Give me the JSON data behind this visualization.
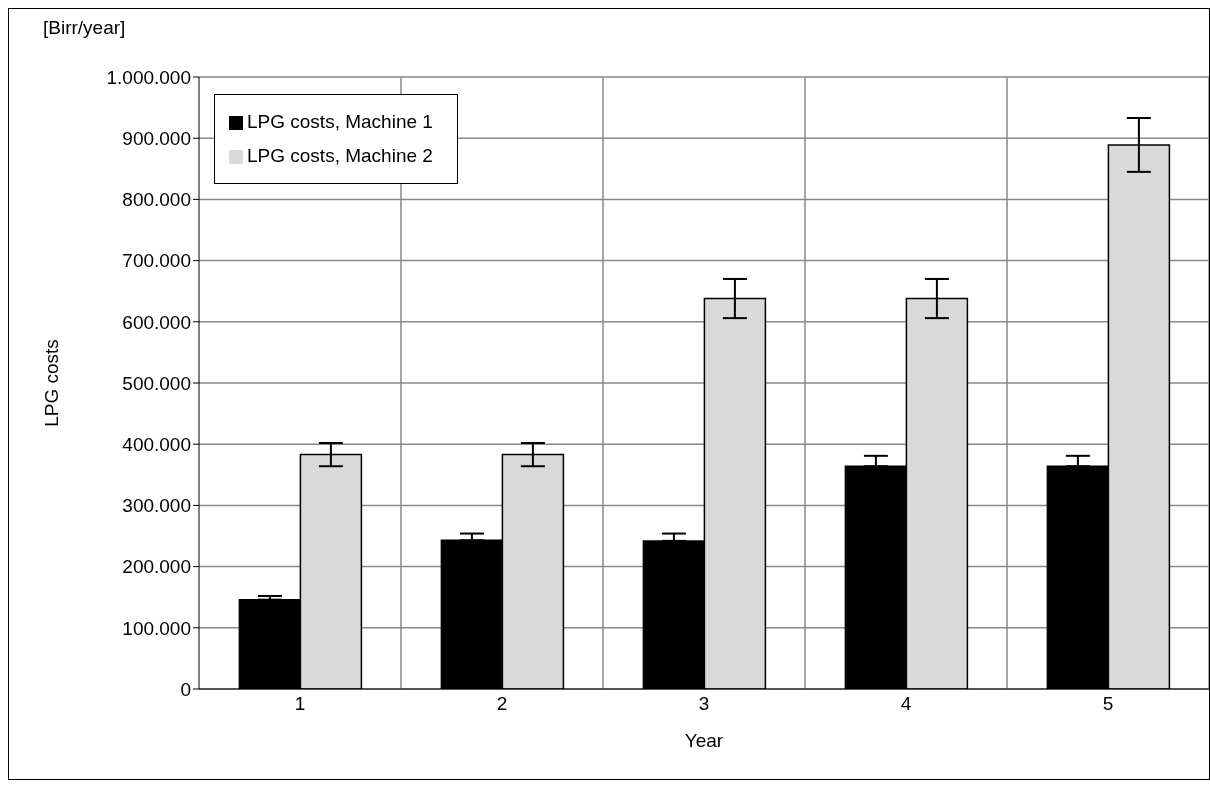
{
  "chart_data": {
    "type": "bar",
    "xlabel": "Year",
    "ylabel": "LPG costs",
    "annotations": [
      "[Birr/year]"
    ],
    "categories": [
      "1",
      "2",
      "3",
      "4",
      "5"
    ],
    "series": [
      {
        "name": "LPG costs, Machine 1",
        "color": "#000000",
        "values": [
          146000,
          243000,
          242000,
          364000,
          364000
        ],
        "errors": [
          [
            146000,
            152000
          ],
          [
            243000,
            254000
          ],
          [
            242000,
            254000
          ],
          [
            364000,
            381000
          ],
          [
            364000,
            381000
          ]
        ]
      },
      {
        "name": "LPG costs, Machine 2",
        "color": "#d9d9d9",
        "values": [
          383000,
          383000,
          638000,
          638000,
          889000
        ],
        "errors": [
          19000,
          19000,
          32000,
          32000,
          44000
        ]
      }
    ],
    "ylim": [
      0,
      1000000
    ],
    "yticks": [
      {
        "value": 0,
        "label": "0"
      },
      {
        "value": 100000,
        "label": "100.000"
      },
      {
        "value": 200000,
        "label": "200.000"
      },
      {
        "value": 300000,
        "label": "300.000"
      },
      {
        "value": 400000,
        "label": "400.000"
      },
      {
        "value": 500000,
        "label": "500.000"
      },
      {
        "value": 600000,
        "label": "600.000"
      },
      {
        "value": 700000,
        "label": "700.000"
      },
      {
        "value": 800000,
        "label": "800.000"
      },
      {
        "value": 900000,
        "label": "900.000"
      },
      {
        "value": 1000000,
        "label": "1.000.000"
      }
    ],
    "grid": true,
    "legend": "top left"
  }
}
